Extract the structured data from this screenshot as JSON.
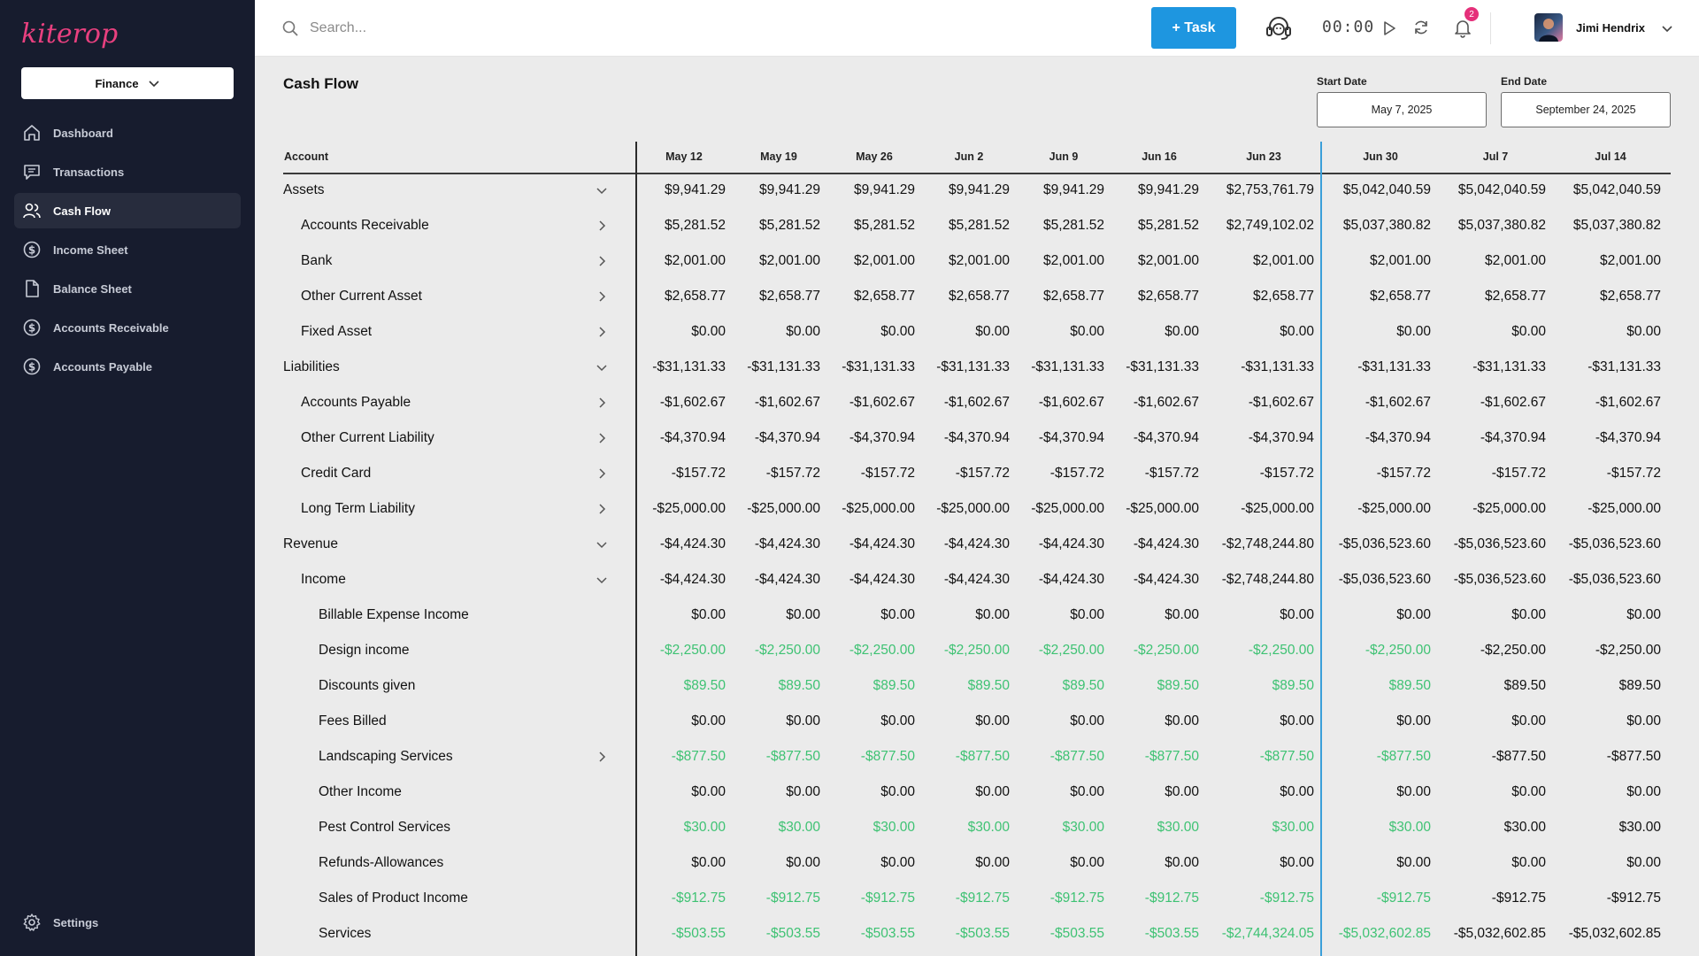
{
  "app": {
    "logo_text": "kiterope",
    "org_selector": "Finance"
  },
  "sidebar": {
    "items": [
      {
        "label": "Dashboard",
        "icon": "home-icon",
        "active": false
      },
      {
        "label": "Transactions",
        "icon": "message-icon",
        "active": false
      },
      {
        "label": "Cash Flow",
        "icon": "users-icon",
        "active": true
      },
      {
        "label": "Income Sheet",
        "icon": "dollar-circle-icon",
        "active": false
      },
      {
        "label": "Balance Sheet",
        "icon": "document-icon",
        "active": false
      },
      {
        "label": "Accounts Receivable",
        "icon": "dollar-circle-icon",
        "active": false
      },
      {
        "label": "Accounts Payable",
        "icon": "dollar-circle-icon",
        "active": false
      }
    ],
    "settings_label": "Settings"
  },
  "topbar": {
    "search_placeholder": "Search...",
    "task_button": "+ Task",
    "timer": "00:00",
    "notification_count": "2",
    "user_name": "Jimi Hendrix"
  },
  "page": {
    "title": "Cash Flow",
    "start_date_label": "Start Date",
    "start_date": "May 7, 2025",
    "end_date_label": "End Date",
    "end_date": "September 24, 2025"
  },
  "colors": {
    "sidebar_bg": "#171c2e",
    "accent_blue": "#1e96e0",
    "positive_green": "#3ec273",
    "badge_pink": "#e5307a",
    "logo_pink": "#e8407f"
  },
  "table": {
    "account_header": "Account",
    "columns": [
      "May 12",
      "May 19",
      "May 26",
      "Jun 2",
      "Jun 9",
      "Jun 16",
      "Jun 23",
      "Jun 30",
      "Jul 7",
      "Jul 14"
    ],
    "rows": [
      {
        "label": "Assets",
        "level": 0,
        "toggle": "down",
        "values": [
          "$9,941.29",
          "$9,941.29",
          "$9,941.29",
          "$9,941.29",
          "$9,941.29",
          "$9,941.29",
          "$2,753,761.79",
          "$5,042,040.59",
          "$5,042,040.59",
          "$5,042,040.59"
        ],
        "green_cols": 0
      },
      {
        "label": "Accounts Receivable",
        "level": 1,
        "toggle": "right",
        "values": [
          "$5,281.52",
          "$5,281.52",
          "$5,281.52",
          "$5,281.52",
          "$5,281.52",
          "$5,281.52",
          "$2,749,102.02",
          "$5,037,380.82",
          "$5,037,380.82",
          "$5,037,380.82"
        ],
        "green_cols": 0
      },
      {
        "label": "Bank",
        "level": 1,
        "toggle": "right",
        "values": [
          "$2,001.00",
          "$2,001.00",
          "$2,001.00",
          "$2,001.00",
          "$2,001.00",
          "$2,001.00",
          "$2,001.00",
          "$2,001.00",
          "$2,001.00",
          "$2,001.00"
        ],
        "green_cols": 0
      },
      {
        "label": "Other Current Asset",
        "level": 1,
        "toggle": "right",
        "values": [
          "$2,658.77",
          "$2,658.77",
          "$2,658.77",
          "$2,658.77",
          "$2,658.77",
          "$2,658.77",
          "$2,658.77",
          "$2,658.77",
          "$2,658.77",
          "$2,658.77"
        ],
        "green_cols": 0
      },
      {
        "label": "Fixed Asset",
        "level": 1,
        "toggle": "right",
        "values": [
          "$0.00",
          "$0.00",
          "$0.00",
          "$0.00",
          "$0.00",
          "$0.00",
          "$0.00",
          "$0.00",
          "$0.00",
          "$0.00"
        ],
        "green_cols": 0
      },
      {
        "label": "Liabilities",
        "level": 0,
        "toggle": "down",
        "values": [
          "-$31,131.33",
          "-$31,131.33",
          "-$31,131.33",
          "-$31,131.33",
          "-$31,131.33",
          "-$31,131.33",
          "-$31,131.33",
          "-$31,131.33",
          "-$31,131.33",
          "-$31,131.33"
        ],
        "green_cols": 0
      },
      {
        "label": "Accounts Payable",
        "level": 1,
        "toggle": "right",
        "values": [
          "-$1,602.67",
          "-$1,602.67",
          "-$1,602.67",
          "-$1,602.67",
          "-$1,602.67",
          "-$1,602.67",
          "-$1,602.67",
          "-$1,602.67",
          "-$1,602.67",
          "-$1,602.67"
        ],
        "green_cols": 0
      },
      {
        "label": "Other Current Liability",
        "level": 1,
        "toggle": "right",
        "values": [
          "-$4,370.94",
          "-$4,370.94",
          "-$4,370.94",
          "-$4,370.94",
          "-$4,370.94",
          "-$4,370.94",
          "-$4,370.94",
          "-$4,370.94",
          "-$4,370.94",
          "-$4,370.94"
        ],
        "green_cols": 0
      },
      {
        "label": "Credit Card",
        "level": 1,
        "toggle": "right",
        "values": [
          "-$157.72",
          "-$157.72",
          "-$157.72",
          "-$157.72",
          "-$157.72",
          "-$157.72",
          "-$157.72",
          "-$157.72",
          "-$157.72",
          "-$157.72"
        ],
        "green_cols": 0
      },
      {
        "label": "Long Term Liability",
        "level": 1,
        "toggle": "right",
        "values": [
          "-$25,000.00",
          "-$25,000.00",
          "-$25,000.00",
          "-$25,000.00",
          "-$25,000.00",
          "-$25,000.00",
          "-$25,000.00",
          "-$25,000.00",
          "-$25,000.00",
          "-$25,000.00"
        ],
        "green_cols": 0
      },
      {
        "label": "Revenue",
        "level": 0,
        "toggle": "down",
        "values": [
          "-$4,424.30",
          "-$4,424.30",
          "-$4,424.30",
          "-$4,424.30",
          "-$4,424.30",
          "-$4,424.30",
          "-$2,748,244.80",
          "-$5,036,523.60",
          "-$5,036,523.60",
          "-$5,036,523.60"
        ],
        "green_cols": 0
      },
      {
        "label": "Income",
        "level": 1,
        "toggle": "down",
        "values": [
          "-$4,424.30",
          "-$4,424.30",
          "-$4,424.30",
          "-$4,424.30",
          "-$4,424.30",
          "-$4,424.30",
          "-$2,748,244.80",
          "-$5,036,523.60",
          "-$5,036,523.60",
          "-$5,036,523.60"
        ],
        "green_cols": 0
      },
      {
        "label": "Billable Expense Income",
        "level": 2,
        "toggle": "",
        "values": [
          "$0.00",
          "$0.00",
          "$0.00",
          "$0.00",
          "$0.00",
          "$0.00",
          "$0.00",
          "$0.00",
          "$0.00",
          "$0.00"
        ],
        "green_cols": 0
      },
      {
        "label": "Design income",
        "level": 2,
        "toggle": "",
        "values": [
          "-$2,250.00",
          "-$2,250.00",
          "-$2,250.00",
          "-$2,250.00",
          "-$2,250.00",
          "-$2,250.00",
          "-$2,250.00",
          "-$2,250.00",
          "-$2,250.00",
          "-$2,250.00"
        ],
        "green_cols": 8
      },
      {
        "label": "Discounts given",
        "level": 2,
        "toggle": "",
        "values": [
          "$89.50",
          "$89.50",
          "$89.50",
          "$89.50",
          "$89.50",
          "$89.50",
          "$89.50",
          "$89.50",
          "$89.50",
          "$89.50"
        ],
        "green_cols": 8
      },
      {
        "label": "Fees Billed",
        "level": 2,
        "toggle": "",
        "values": [
          "$0.00",
          "$0.00",
          "$0.00",
          "$0.00",
          "$0.00",
          "$0.00",
          "$0.00",
          "$0.00",
          "$0.00",
          "$0.00"
        ],
        "green_cols": 0
      },
      {
        "label": "Landscaping Services",
        "level": 2,
        "toggle": "right",
        "values": [
          "-$877.50",
          "-$877.50",
          "-$877.50",
          "-$877.50",
          "-$877.50",
          "-$877.50",
          "-$877.50",
          "-$877.50",
          "-$877.50",
          "-$877.50"
        ],
        "green_cols": 8
      },
      {
        "label": "Other Income",
        "level": 2,
        "toggle": "",
        "values": [
          "$0.00",
          "$0.00",
          "$0.00",
          "$0.00",
          "$0.00",
          "$0.00",
          "$0.00",
          "$0.00",
          "$0.00",
          "$0.00"
        ],
        "green_cols": 0
      },
      {
        "label": "Pest Control Services",
        "level": 2,
        "toggle": "",
        "values": [
          "$30.00",
          "$30.00",
          "$30.00",
          "$30.00",
          "$30.00",
          "$30.00",
          "$30.00",
          "$30.00",
          "$30.00",
          "$30.00"
        ],
        "green_cols": 8
      },
      {
        "label": "Refunds-Allowances",
        "level": 2,
        "toggle": "",
        "values": [
          "$0.00",
          "$0.00",
          "$0.00",
          "$0.00",
          "$0.00",
          "$0.00",
          "$0.00",
          "$0.00",
          "$0.00",
          "$0.00"
        ],
        "green_cols": 0
      },
      {
        "label": "Sales of Product Income",
        "level": 2,
        "toggle": "",
        "values": [
          "-$912.75",
          "-$912.75",
          "-$912.75",
          "-$912.75",
          "-$912.75",
          "-$912.75",
          "-$912.75",
          "-$912.75",
          "-$912.75",
          "-$912.75"
        ],
        "green_cols": 8
      },
      {
        "label": "Services",
        "level": 2,
        "toggle": "",
        "values": [
          "-$503.55",
          "-$503.55",
          "-$503.55",
          "-$503.55",
          "-$503.55",
          "-$503.55",
          "-$2,744,324.05",
          "-$5,032,602.85",
          "-$5,032,602.85",
          "-$5,032,602.85"
        ],
        "green_cols": 8
      }
    ]
  }
}
